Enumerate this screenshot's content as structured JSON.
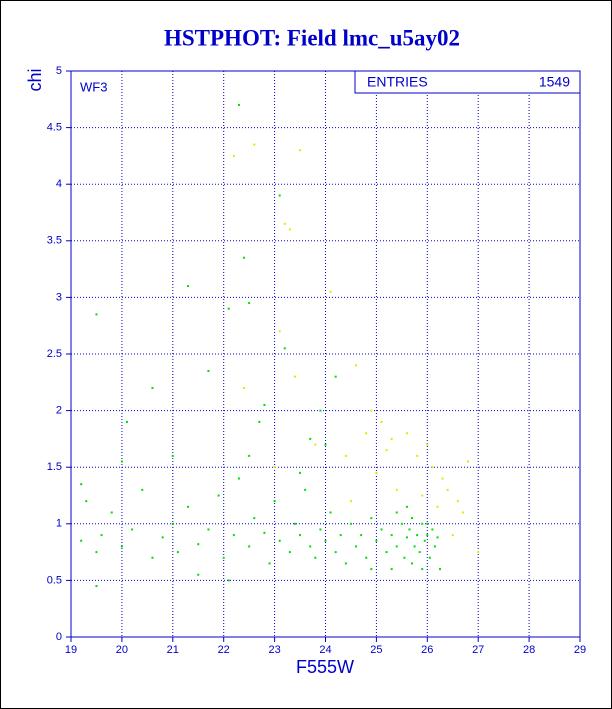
{
  "chart_data": {
    "type": "scatter",
    "title": "HSTPHOT: Field lmc_u5ay02",
    "x_label": "F555W",
    "y_label": "chi",
    "panel_label": "WF3",
    "entries_label": "ENTRIES",
    "entries": 1549,
    "xlim": [
      19,
      29
    ],
    "xticks": [
      19,
      20,
      21,
      22,
      23,
      24,
      25,
      26,
      27,
      28,
      29
    ],
    "ylim": [
      0,
      5
    ],
    "yticks": [
      0,
      0.5,
      1,
      1.5,
      2,
      2.5,
      3,
      3.5,
      4,
      4.5,
      5
    ],
    "grid": true,
    "series": [
      {
        "color": "#00dd00",
        "x": [
          19.2,
          19.3,
          19.5,
          19.6,
          19.8,
          20.0,
          20.2,
          20.4,
          20.6,
          20.8,
          21.0,
          21.1,
          21.3,
          21.5,
          21.7,
          21.9,
          22.0,
          22.2,
          22.3,
          22.5,
          22.6,
          22.8,
          22.9,
          23.0,
          23.1,
          23.3,
          23.4,
          23.5,
          23.6,
          23.7,
          23.8,
          23.9,
          24.0,
          24.1,
          24.2,
          24.3,
          24.4,
          24.5,
          24.6,
          24.7,
          24.8,
          24.9,
          25.0,
          25.1,
          25.2,
          25.3,
          25.4,
          25.5,
          25.55,
          25.6,
          25.65,
          25.7,
          25.75,
          25.8,
          25.85,
          25.9,
          25.95,
          26.0,
          26.05,
          26.1,
          26.15,
          26.2,
          26.25,
          25.7,
          25.9,
          25.4,
          25.6,
          25.3,
          24.9,
          26.0,
          19.5,
          20.1,
          20.6,
          21.3,
          21.7,
          22.1,
          22.3,
          22.4,
          22.5,
          22.8,
          23.1,
          23.2,
          23.7,
          23.9,
          24.2,
          21.0,
          20.0,
          22.7,
          23.5,
          19.2,
          21.5,
          22.1,
          19.5,
          22.5,
          24.0
        ],
        "y": [
          0.85,
          1.2,
          0.75,
          0.9,
          1.1,
          0.8,
          0.95,
          1.3,
          0.7,
          0.88,
          1.0,
          0.75,
          1.15,
          0.82,
          0.95,
          1.25,
          0.7,
          0.9,
          1.4,
          0.8,
          1.05,
          0.92,
          0.65,
          1.2,
          0.85,
          0.75,
          1.0,
          0.9,
          1.3,
          0.8,
          0.7,
          0.95,
          0.85,
          1.1,
          0.75,
          0.9,
          0.65,
          1.0,
          0.8,
          0.9,
          0.7,
          1.05,
          0.85,
          0.95,
          0.75,
          0.9,
          0.8,
          1.0,
          0.7,
          0.88,
          0.95,
          1.05,
          0.8,
          0.9,
          0.75,
          1.0,
          0.85,
          0.9,
          0.7,
          0.95,
          0.8,
          0.88,
          0.6,
          0.65,
          0.6,
          1.1,
          1.15,
          0.6,
          0.6,
          1.0,
          2.85,
          1.9,
          2.2,
          3.1,
          2.35,
          2.9,
          4.7,
          3.35,
          2.95,
          2.05,
          3.9,
          2.55,
          1.75,
          2.0,
          2.3,
          1.6,
          1.55,
          1.9,
          1.45,
          1.35,
          0.55,
          0.5,
          0.45,
          1.6,
          1.7
        ]
      },
      {
        "color": "#e6e600",
        "x": [
          22.2,
          22.6,
          23.5,
          23.3,
          23.2,
          24.1,
          22.4,
          23.4,
          24.6,
          24.9,
          25.1,
          25.3,
          25.6,
          25.8,
          26.1,
          26.4,
          26.6,
          26.7,
          26.3,
          25.0,
          24.4,
          24.8,
          25.4,
          25.9,
          26.2,
          26.5,
          26.8,
          27.0,
          23.1,
          23.8,
          24.5,
          25.2,
          26.0,
          23.0
        ],
        "y": [
          4.25,
          4.35,
          4.3,
          3.6,
          3.65,
          3.05,
          2.2,
          2.3,
          2.4,
          2.0,
          1.9,
          1.75,
          1.8,
          1.6,
          1.5,
          1.3,
          1.2,
          1.1,
          1.4,
          1.45,
          1.6,
          1.8,
          1.3,
          1.25,
          1.15,
          0.9,
          1.55,
          0.75,
          2.7,
          1.7,
          1.2,
          1.65,
          1.7,
          1.5
        ]
      }
    ]
  }
}
